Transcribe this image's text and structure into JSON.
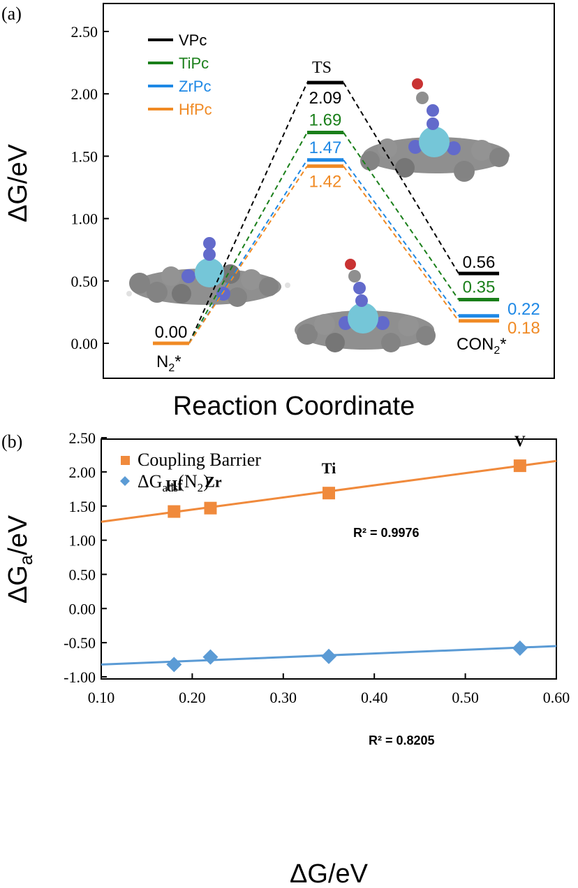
{
  "panel_a": {
    "label": "(a)",
    "ylabel": "ΔG/eV",
    "xlabel": "Reaction Coordinate",
    "stage_labels": {
      "initial": "N",
      "initial_sub": "2",
      "initial_sup": "*",
      "ts": "TS",
      "final": "CON",
      "final_sub": "2",
      "final_sup": "*"
    },
    "colors": {
      "VPc": "#000000",
      "TiPc": "#1a7f1a",
      "ZrPc": "#1e88e5",
      "HfPc": "#f08a24"
    }
  },
  "panel_b": {
    "label": "(b)",
    "ylabel_main": "ΔG",
    "ylabel_sub": "a",
    "ylabel_tail": "/eV",
    "xlabel": "ΔG/eV",
    "legend_barrier": "Coupling Barrier",
    "legend_ads_main": "ΔG",
    "legend_ads_sub": "ads",
    "legend_ads_tail": "(N",
    "legend_ads_sub2": "2",
    "legend_ads_close": ")",
    "r2_barrier": "R² = 0.9976",
    "r2_ads": "R² = 0.8205",
    "colors": {
      "barrier": "#f08a3c",
      "ads": "#5b9bd5"
    }
  },
  "chart_data": [
    {
      "type": "line",
      "title": "",
      "xlabel": "Reaction Coordinate",
      "ylabel": "ΔG/eV",
      "ylim": [
        -0.2,
        2.6
      ],
      "yticks": [
        "0.00",
        "0.50",
        "1.00",
        "1.50",
        "2.00",
        "2.50"
      ],
      "categories": [
        "N2*",
        "TS",
        "CON2*"
      ],
      "legend_position": "top-left",
      "series": [
        {
          "name": "VPc",
          "color": "#000000",
          "values": [
            0.0,
            2.09,
            0.56
          ],
          "labels": [
            "0.00",
            "2.09",
            "0.56"
          ]
        },
        {
          "name": "TiPc",
          "color": "#1a7f1a",
          "values": [
            0.0,
            1.69,
            0.35
          ],
          "labels": [
            "",
            "1.69",
            "0.35"
          ]
        },
        {
          "name": "ZrPc",
          "color": "#1e88e5",
          "values": [
            0.0,
            1.47,
            0.22
          ],
          "labels": [
            "",
            "1.47",
            "0.22"
          ]
        },
        {
          "name": "HfPc",
          "color": "#f08a24",
          "values": [
            0.0,
            1.42,
            0.18
          ],
          "labels": [
            "",
            "1.42",
            "0.18"
          ]
        }
      ]
    },
    {
      "type": "scatter",
      "title": "",
      "xlabel": "ΔG/eV",
      "ylabel": "ΔGa/eV",
      "xlim": [
        0.1,
        0.6
      ],
      "ylim": [
        -1.0,
        2.5
      ],
      "xticks": [
        "0.10",
        "0.20",
        "0.30",
        "0.40",
        "0.50",
        "0.60"
      ],
      "yticks": [
        "-1.00",
        "-0.50",
        "0.00",
        "0.50",
        "1.00",
        "1.50",
        "2.00",
        "2.50"
      ],
      "legend_position": "top-left",
      "series": [
        {
          "name": "Coupling Barrier",
          "marker": "square",
          "color": "#f08a3c",
          "x": [
            0.18,
            0.22,
            0.35,
            0.56
          ],
          "y": [
            1.42,
            1.47,
            1.69,
            2.09
          ],
          "point_labels": [
            "Hf",
            "Zr",
            "Ti",
            "V"
          ],
          "fit": {
            "x": [
              0.1,
              0.6
            ],
            "y": [
              1.27,
              2.16
            ]
          }
        },
        {
          "name": "ΔGads(N2)",
          "marker": "diamond",
          "color": "#5b9bd5",
          "x": [
            0.18,
            0.22,
            0.35,
            0.56
          ],
          "y": [
            -0.82,
            -0.71,
            -0.7,
            -0.58
          ],
          "fit": {
            "x": [
              0.1,
              0.6
            ],
            "y": [
              -0.82,
              -0.55
            ]
          }
        }
      ]
    }
  ]
}
